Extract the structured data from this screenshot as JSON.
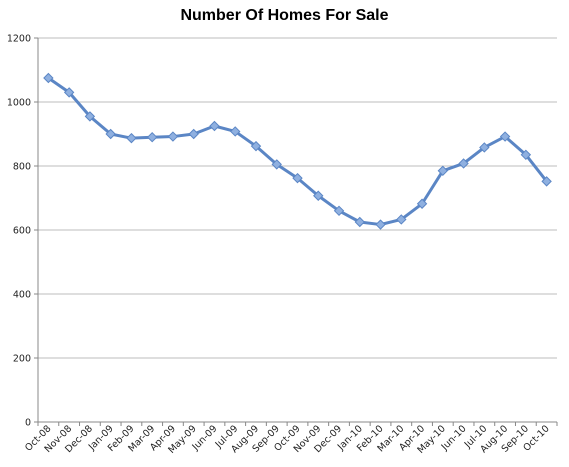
{
  "chart_data": {
    "type": "line",
    "title": "Number Of Homes For Sale",
    "xlabel": "",
    "ylabel": "",
    "ylim": [
      0,
      1200
    ],
    "yticks": [
      0,
      200,
      400,
      600,
      800,
      1000,
      1200
    ],
    "grid": true,
    "legend": "none",
    "categories": [
      "Oct-08",
      "Nov-08",
      "Dec-08",
      "Jan-09",
      "Feb-09",
      "Mar-09",
      "Apr-09",
      "May-09",
      "Jun-09",
      "Jul-09",
      "Aug-09",
      "Sep-09",
      "Oct-09",
      "Nov-09",
      "Dec-09",
      "Jan-10",
      "Feb-10",
      "Mar-10",
      "Apr-10",
      "May-10",
      "Jun-10",
      "Jul-10",
      "Aug-10",
      "Sep-10",
      "Oct-10"
    ],
    "series": [
      {
        "values": [
          1075,
          1030,
          955,
          900,
          887,
          890,
          892,
          900,
          925,
          908,
          862,
          805,
          762,
          707,
          660,
          625,
          617,
          633,
          682,
          785,
          808,
          858,
          892,
          835,
          752
        ],
        "color": "#5B86C5",
        "marker": "diamond"
      }
    ]
  }
}
